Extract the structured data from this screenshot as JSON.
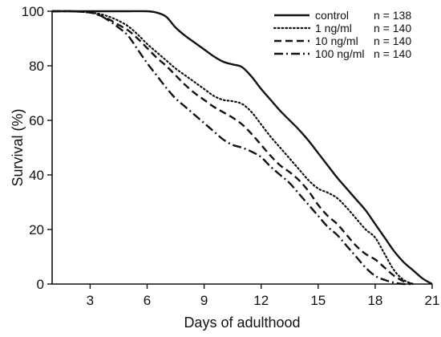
{
  "chart_data": {
    "type": "line",
    "title": "",
    "xlabel": "Days of adulthood",
    "ylabel": "Survival (%)",
    "xlim": [
      1,
      21
    ],
    "ylim": [
      0,
      100
    ],
    "xticks": [
      3,
      6,
      9,
      12,
      15,
      18,
      21
    ],
    "yticks": [
      0,
      20,
      40,
      60,
      80,
      100
    ],
    "grid": false,
    "legend_position": "top-right",
    "series": [
      {
        "name": "control",
        "n_label": "n = 138",
        "style": "solid",
        "color": "#111111",
        "x": [
          1,
          2,
          3,
          4,
          5,
          6,
          6.5,
          7,
          7.5,
          8,
          8.5,
          9,
          9.5,
          10,
          10.5,
          11,
          11.5,
          12,
          12.5,
          13,
          13.5,
          14,
          14.5,
          15,
          15.5,
          16,
          16.5,
          17,
          17.5,
          18,
          18.5,
          19,
          19.5,
          20,
          20.5,
          21
        ],
        "y": [
          100,
          100,
          100,
          100,
          100,
          100,
          99.5,
          98,
          94,
          91,
          88.5,
          86,
          83.5,
          81.5,
          80.5,
          79.5,
          76,
          71.5,
          67.5,
          63.5,
          60,
          56.5,
          52.5,
          48,
          43.5,
          39,
          35,
          31,
          27,
          22,
          17,
          12,
          8,
          5,
          2,
          0
        ]
      },
      {
        "name": "1 ng/ml",
        "n_label": "n = 140",
        "style": "dotted",
        "color": "#111111",
        "x": [
          1,
          2,
          3,
          3.5,
          4,
          4.5,
          5,
          5.5,
          6,
          6.5,
          7,
          7.5,
          8,
          8.5,
          9,
          9.5,
          10,
          10.5,
          11,
          11.5,
          12,
          12.5,
          13,
          13.5,
          14,
          14.5,
          15,
          15.5,
          16,
          16.5,
          17,
          17.5,
          18,
          18.5,
          19,
          19.5,
          20
        ],
        "y": [
          100,
          100,
          99.5,
          99,
          98,
          96.5,
          94.5,
          91.5,
          88,
          85,
          82,
          79,
          76.5,
          74,
          71.5,
          69,
          67.5,
          67,
          66,
          63,
          58.5,
          54,
          50,
          46,
          42,
          38,
          35,
          33.5,
          31.5,
          28,
          24,
          20,
          17,
          11,
          5,
          1.5,
          0
        ]
      },
      {
        "name": "10 ng/ml",
        "n_label": "n = 140",
        "style": "dashed",
        "color": "#111111",
        "x": [
          1,
          2,
          3,
          3.5,
          4,
          4.5,
          5,
          5.5,
          6,
          6.5,
          7,
          7.5,
          8,
          8.5,
          9,
          9.5,
          10,
          10.5,
          11,
          11.5,
          12,
          12.5,
          13,
          13.5,
          14,
          14.5,
          15,
          15.5,
          16,
          16.5,
          17,
          17.5,
          18,
          18.5,
          19,
          19.5,
          20
        ],
        "y": [
          100,
          100,
          99.5,
          98.5,
          97,
          95,
          93,
          90,
          86.5,
          83,
          80,
          76.5,
          73,
          70,
          67.5,
          65,
          63,
          61,
          58.5,
          55,
          51,
          47,
          43.5,
          41,
          38,
          34,
          29,
          25,
          22,
          18,
          14,
          11,
          9,
          6,
          3,
          1,
          0
        ]
      },
      {
        "name": "100 ng/ml",
        "n_label": "n = 140",
        "style": "dash-dot",
        "color": "#111111",
        "x": [
          1,
          2,
          3,
          3.5,
          4,
          4.5,
          5,
          5.5,
          6,
          6.5,
          7,
          7.5,
          8,
          8.5,
          9,
          9.5,
          10,
          10.5,
          11,
          11.5,
          12,
          12.5,
          13,
          13.5,
          14,
          14.5,
          15,
          15.5,
          16,
          16.5,
          17,
          17.5,
          18,
          18.5,
          19,
          19.5,
          20
        ],
        "y": [
          100,
          100,
          99.5,
          98.5,
          96.5,
          94,
          91,
          86,
          81,
          76.5,
          72,
          68,
          65,
          62,
          59,
          56,
          53,
          51,
          50,
          48.5,
          46.5,
          43,
          40,
          37,
          33,
          29,
          25,
          21,
          18,
          14,
          10,
          6,
          3,
          1.5,
          0.5,
          0,
          0
        ]
      }
    ]
  }
}
